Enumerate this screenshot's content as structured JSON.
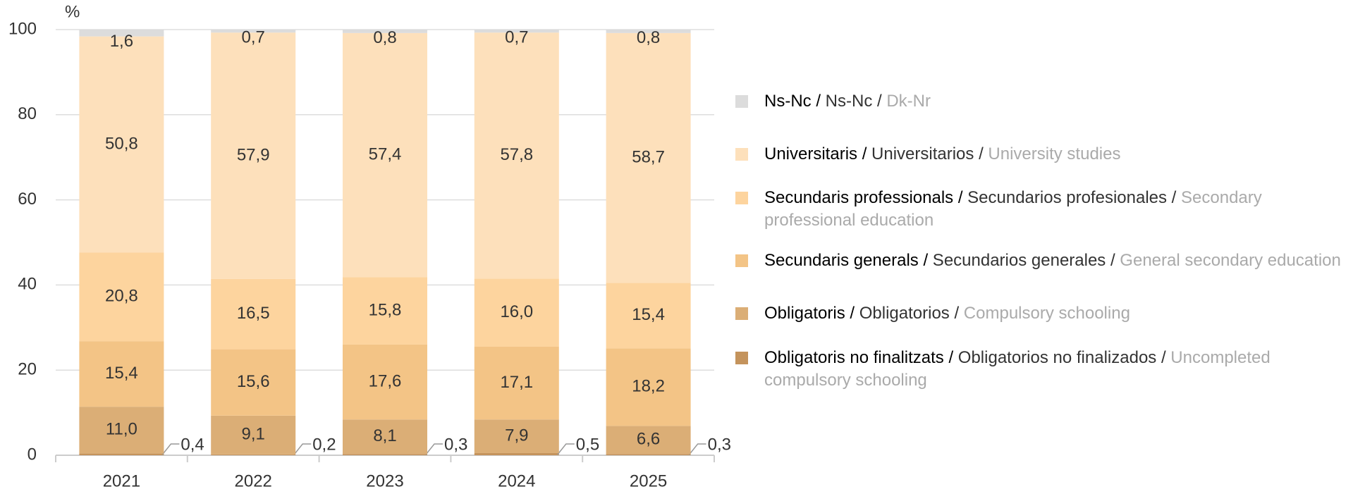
{
  "chart_data": {
    "type": "stacked_bar",
    "ylabel": "%",
    "categories": [
      "2021",
      "2022",
      "2023",
      "2024",
      "2025"
    ],
    "ylim": [
      0,
      100
    ],
    "yticks": [
      0,
      20,
      40,
      60,
      80,
      100
    ],
    "grid": true,
    "series": [
      {
        "name": "Obligatoris no finalitzats / Obligatorios no finalizados / Uncompleted compulsory schooling",
        "color": "#c4935c",
        "values": [
          0.4,
          0.2,
          0.3,
          0.5,
          0.3
        ],
        "value_labels": [
          "0,4",
          "0,2",
          "0,3",
          "0,5",
          "0,3"
        ]
      },
      {
        "name": "Obligatoris / Obligatorios / Compulsory schooling",
        "color": "#dbae76",
        "values": [
          11.0,
          9.1,
          8.1,
          7.9,
          6.6
        ],
        "value_labels": [
          "11,0",
          "9,1",
          "8,1",
          "7,9",
          "6,6"
        ]
      },
      {
        "name": "Secundaris generals / Secundarios generales / General secondary education",
        "color": "#f3c486",
        "values": [
          15.4,
          15.6,
          17.6,
          17.1,
          18.2
        ],
        "value_labels": [
          "15,4",
          "15,6",
          "17,6",
          "17,1",
          "18,2"
        ]
      },
      {
        "name": "Secundaris professionals / Secundarios profesionales / Secondary professional education",
        "color": "#fdd49e",
        "values": [
          20.8,
          16.5,
          15.8,
          16.0,
          15.4
        ],
        "value_labels": [
          "20,8",
          "16,5",
          "15,8",
          "16,0",
          "15,4"
        ]
      },
      {
        "name": "Universitaris / Universitarios / University studies",
        "color": "#fde0bb",
        "values": [
          50.8,
          57.9,
          57.4,
          57.8,
          58.7
        ],
        "value_labels": [
          "50,8",
          "57,9",
          "57,4",
          "57,8",
          "58,7"
        ]
      },
      {
        "name": "Ns-Nc / Ns-Nc / Dk-Nr",
        "color": "#dcdcdc",
        "values": [
          1.6,
          0.7,
          0.8,
          0.7,
          0.8
        ],
        "value_labels": [
          "1,6",
          "0,7",
          "0,8",
          "0,7",
          "0,8"
        ]
      }
    ]
  }
}
